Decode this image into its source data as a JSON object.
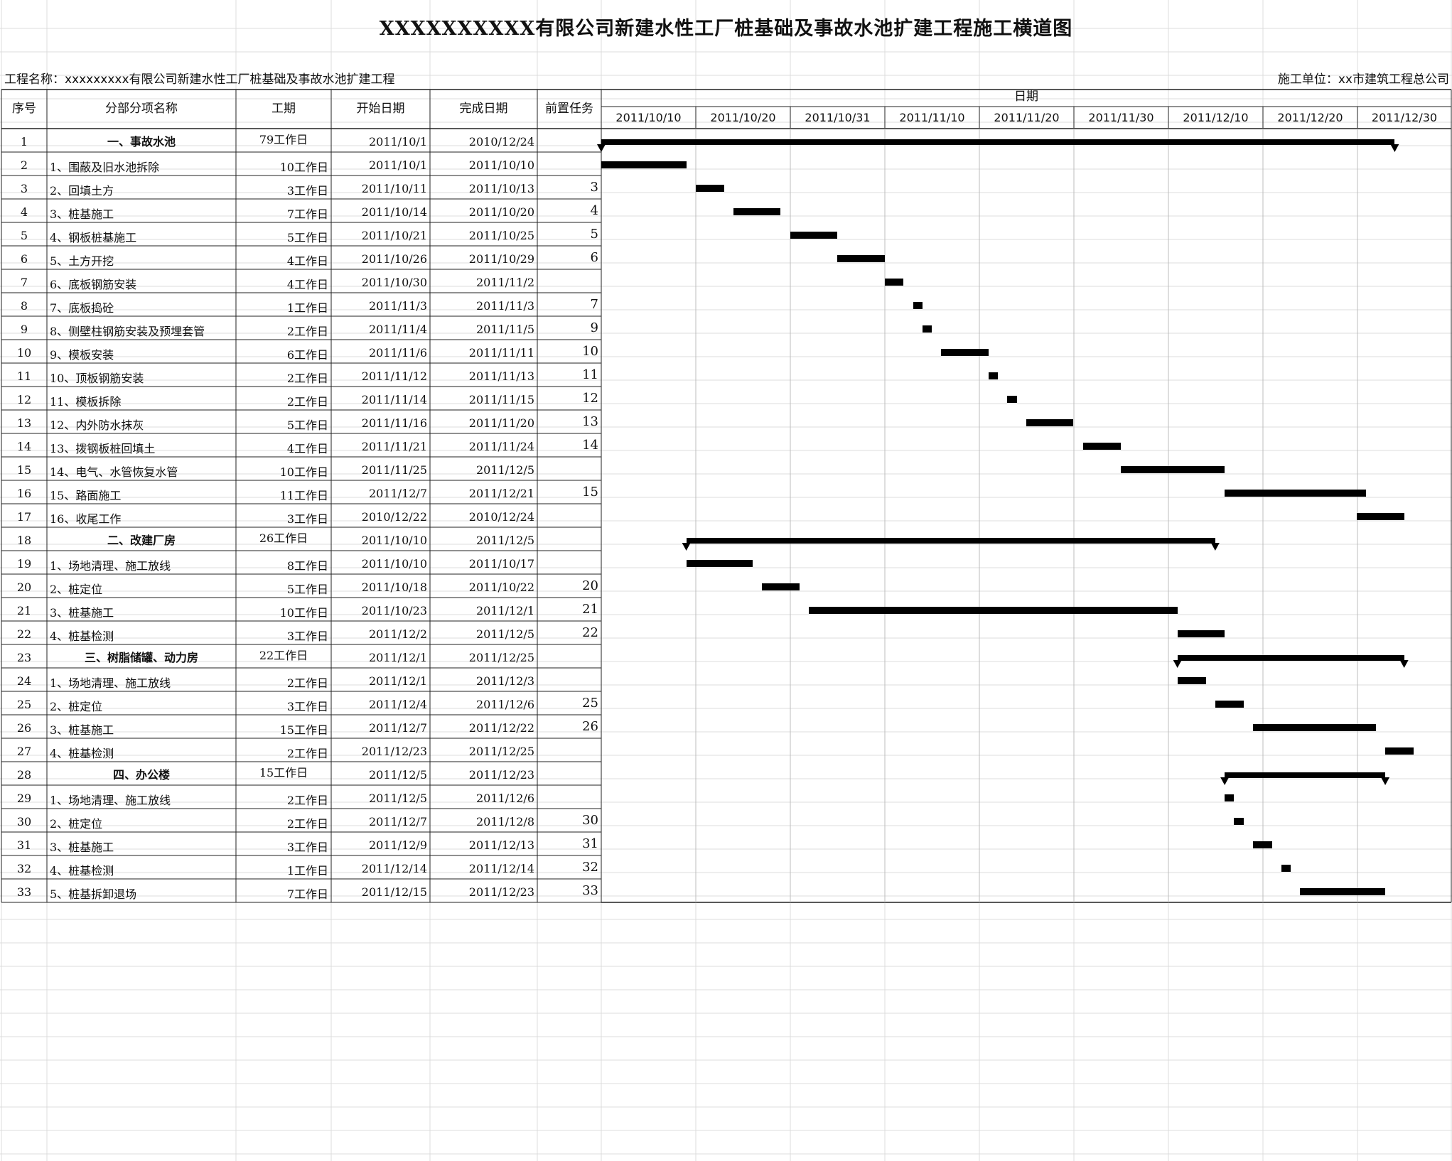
{
  "title": "XXXXXXXXXX有限公司新建水性工厂桩基础及事故水池扩建工程施工横道图",
  "project_label": "工程名称：xxxxxxxxx有限公司新建水性工厂桩基础及事故水池扩建工程",
  "contractor_label": "施工单位：xx市建筑工程总公司",
  "headers": {
    "seq": "序号",
    "name": "分部分项名称",
    "duration": "工期",
    "start": "开始日期",
    "end": "完成日期",
    "pred": "前置任务",
    "date_group": "日期"
  },
  "date_ticks": [
    "2011/10/10",
    "2011/10/20",
    "2011/10/31",
    "2011/11/10",
    "2011/11/20",
    "2011/11/30",
    "2011/12/10",
    "2011/12/20",
    "2011/12/30"
  ],
  "rows": [
    {
      "seq": "1",
      "name": "一、事故水池",
      "duration": "79工作日",
      "start": "2011/10/1",
      "end": "2010/12/24",
      "pred": "",
      "summary": true
    },
    {
      "seq": "2",
      "name": "1、围蔽及旧水池拆除",
      "duration": "10工作日",
      "start": "2011/10/1",
      "end": "2011/10/10",
      "pred": ""
    },
    {
      "seq": "3",
      "name": "2、回填土方",
      "duration": "3工作日",
      "start": "2011/10/11",
      "end": "2011/10/13",
      "pred": "3"
    },
    {
      "seq": "4",
      "name": "3、桩基施工",
      "duration": "7工作日",
      "start": "2011/10/14",
      "end": "2011/10/20",
      "pred": "4"
    },
    {
      "seq": "5",
      "name": "4、钢板桩基施工",
      "duration": "5工作日",
      "start": "2011/10/21",
      "end": "2011/10/25",
      "pred": "5"
    },
    {
      "seq": "6",
      "name": "5、土方开挖",
      "duration": "4工作日",
      "start": "2011/10/26",
      "end": "2011/10/29",
      "pred": "6"
    },
    {
      "seq": "7",
      "name": "6、底板钢筋安装",
      "duration": "4工作日",
      "start": "2011/10/30",
      "end": "2011/11/2",
      "pred": ""
    },
    {
      "seq": "8",
      "name": "7、底板捣砼",
      "duration": "1工作日",
      "start": "2011/11/3",
      "end": "2011/11/3",
      "pred": "7"
    },
    {
      "seq": "9",
      "name": "8、侧壁柱钢筋安装及预埋套管",
      "duration": "2工作日",
      "start": "2011/11/4",
      "end": "2011/11/5",
      "pred": "9"
    },
    {
      "seq": "10",
      "name": "9、模板安装",
      "duration": "6工作日",
      "start": "2011/11/6",
      "end": "2011/11/11",
      "pred": "10"
    },
    {
      "seq": "11",
      "name": "10、顶板钢筋安装",
      "duration": "2工作日",
      "start": "2011/11/12",
      "end": "2011/11/13",
      "pred": "11"
    },
    {
      "seq": "12",
      "name": "11、模板拆除",
      "duration": "2工作日",
      "start": "2011/11/14",
      "end": "2011/11/15",
      "pred": "12"
    },
    {
      "seq": "13",
      "name": "12、内外防水抹灰",
      "duration": "5工作日",
      "start": "2011/11/16",
      "end": "2011/11/20",
      "pred": "13"
    },
    {
      "seq": "14",
      "name": "13、拨钢板桩回填土",
      "duration": "4工作日",
      "start": "2011/11/21",
      "end": "2011/11/24",
      "pred": "14"
    },
    {
      "seq": "15",
      "name": "14、电气、水管恢复水管",
      "duration": "10工作日",
      "start": "2011/11/25",
      "end": "2011/12/5",
      "pred": ""
    },
    {
      "seq": "16",
      "name": "15、路面施工",
      "duration": "11工作日",
      "start": "2011/12/7",
      "end": "2011/12/21",
      "pred": "15"
    },
    {
      "seq": "17",
      "name": "16、收尾工作",
      "duration": "3工作日",
      "start": "2010/12/22",
      "end": "2010/12/24",
      "pred": ""
    },
    {
      "seq": "18",
      "name": "二、改建厂房",
      "duration": "26工作日",
      "start": "2011/10/10",
      "end": "2011/12/5",
      "pred": "",
      "summary": true
    },
    {
      "seq": "19",
      "name": "1、场地清理、施工放线",
      "duration": "8工作日",
      "start": "2011/10/10",
      "end": "2011/10/17",
      "pred": ""
    },
    {
      "seq": "20",
      "name": "2、桩定位",
      "duration": "5工作日",
      "start": "2011/10/18",
      "end": "2011/10/22",
      "pred": "20"
    },
    {
      "seq": "21",
      "name": "3、桩基施工",
      "duration": "10工作日",
      "start": "2011/10/23",
      "end": "2011/12/1",
      "pred": "21"
    },
    {
      "seq": "22",
      "name": "4、桩基检测",
      "duration": "3工作日",
      "start": "2011/12/2",
      "end": "2011/12/5",
      "pred": "22"
    },
    {
      "seq": "23",
      "name": "三、树脂储罐、动力房",
      "duration": "22工作日",
      "start": "2011/12/1",
      "end": "2011/12/25",
      "pred": "",
      "summary": true
    },
    {
      "seq": "24",
      "name": "1、场地清理、施工放线",
      "duration": "2工作日",
      "start": "2011/12/1",
      "end": "2011/12/3",
      "pred": ""
    },
    {
      "seq": "25",
      "name": "2、桩定位",
      "duration": "3工作日",
      "start": "2011/12/4",
      "end": "2011/12/6",
      "pred": "25"
    },
    {
      "seq": "26",
      "name": "3、桩基施工",
      "duration": "15工作日",
      "start": "2011/12/7",
      "end": "2011/12/22",
      "pred": "26"
    },
    {
      "seq": "27",
      "name": "4、桩基检测",
      "duration": "2工作日",
      "start": "2011/12/23",
      "end": "2011/12/25",
      "pred": ""
    },
    {
      "seq": "28",
      "name": "四、办公楼",
      "duration": "15工作日",
      "start": "2011/12/5",
      "end": "2011/12/23",
      "pred": "",
      "summary": true
    },
    {
      "seq": "29",
      "name": "1、场地清理、施工放线",
      "duration": "2工作日",
      "start": "2011/12/5",
      "end": "2011/12/6",
      "pred": ""
    },
    {
      "seq": "30",
      "name": "2、桩定位",
      "duration": "2工作日",
      "start": "2011/12/7",
      "end": "2011/12/8",
      "pred": "30"
    },
    {
      "seq": "31",
      "name": "3、桩基施工",
      "duration": "3工作日",
      "start": "2011/12/9",
      "end": "2011/12/13",
      "pred": "31"
    },
    {
      "seq": "32",
      "name": "4、桩基检测",
      "duration": "1工作日",
      "start": "2011/12/14",
      "end": "2011/12/14",
      "pred": "32"
    },
    {
      "seq": "33",
      "name": "5、桩基拆卸退场",
      "duration": "7工作日",
      "start": "2011/12/15",
      "end": "2011/12/23",
      "pred": "33"
    }
  ],
  "chart_data": {
    "type": "gantt",
    "x_axis": {
      "min": "2011/10/1",
      "max": "2011/12/30",
      "ticks": [
        "2011/10/10",
        "2011/10/20",
        "2011/10/31",
        "2011/11/10",
        "2011/11/20",
        "2011/11/30",
        "2011/12/10",
        "2011/12/20",
        "2011/12/30"
      ]
    },
    "bars": [
      {
        "task": "1",
        "start": "2011/10/1",
        "end": "2011/12/24",
        "summary": true
      },
      {
        "task": "2",
        "start": "2011/10/1",
        "end": "2011/10/10"
      },
      {
        "task": "3",
        "start": "2011/10/11",
        "end": "2011/10/14"
      },
      {
        "task": "4",
        "start": "2011/10/15",
        "end": "2011/10/20"
      },
      {
        "task": "5",
        "start": "2011/10/21",
        "end": "2011/10/26"
      },
      {
        "task": "6",
        "start": "2011/10/26",
        "end": "2011/10/31"
      },
      {
        "task": "7",
        "start": "2011/10/31",
        "end": "2011/11/2"
      },
      {
        "task": "8",
        "start": "2011/11/3",
        "end": "2011/11/4"
      },
      {
        "task": "9",
        "start": "2011/11/4",
        "end": "2011/11/5"
      },
      {
        "task": "10",
        "start": "2011/11/6",
        "end": "2011/11/11"
      },
      {
        "task": "11",
        "start": "2011/11/11",
        "end": "2011/11/12"
      },
      {
        "task": "12",
        "start": "2011/11/13",
        "end": "2011/11/14"
      },
      {
        "task": "13",
        "start": "2011/11/15",
        "end": "2011/11/20"
      },
      {
        "task": "14",
        "start": "2011/11/21",
        "end": "2011/11/25"
      },
      {
        "task": "15",
        "start": "2011/11/25",
        "end": "2011/12/6"
      },
      {
        "task": "16",
        "start": "2011/12/6",
        "end": "2011/12/21"
      },
      {
        "task": "17",
        "start": "2011/12/20",
        "end": "2011/12/25"
      },
      {
        "task": "18",
        "start": "2011/10/10",
        "end": "2011/12/5",
        "summary": true
      },
      {
        "task": "19",
        "start": "2011/10/10",
        "end": "2011/10/17"
      },
      {
        "task": "20",
        "start": "2011/10/18",
        "end": "2011/10/22"
      },
      {
        "task": "21",
        "start": "2011/10/23",
        "end": "2011/12/1"
      },
      {
        "task": "22",
        "start": "2011/12/1",
        "end": "2011/12/6"
      },
      {
        "task": "23",
        "start": "2011/12/1",
        "end": "2011/12/25",
        "summary": true
      },
      {
        "task": "24",
        "start": "2011/12/1",
        "end": "2011/12/4"
      },
      {
        "task": "25",
        "start": "2011/12/5",
        "end": "2011/12/8"
      },
      {
        "task": "26",
        "start": "2011/12/9",
        "end": "2011/12/22"
      },
      {
        "task": "27",
        "start": "2011/12/23",
        "end": "2011/12/26"
      },
      {
        "task": "28",
        "start": "2011/12/6",
        "end": "2011/12/23",
        "summary": true
      },
      {
        "task": "29",
        "start": "2011/12/6",
        "end": "2011/12/7"
      },
      {
        "task": "30",
        "start": "2011/12/7",
        "end": "2011/12/8"
      },
      {
        "task": "31",
        "start": "2011/12/9",
        "end": "2011/12/11"
      },
      {
        "task": "32",
        "start": "2011/12/12",
        "end": "2011/12/13"
      },
      {
        "task": "33",
        "start": "2011/12/14",
        "end": "2011/12/23"
      }
    ]
  }
}
